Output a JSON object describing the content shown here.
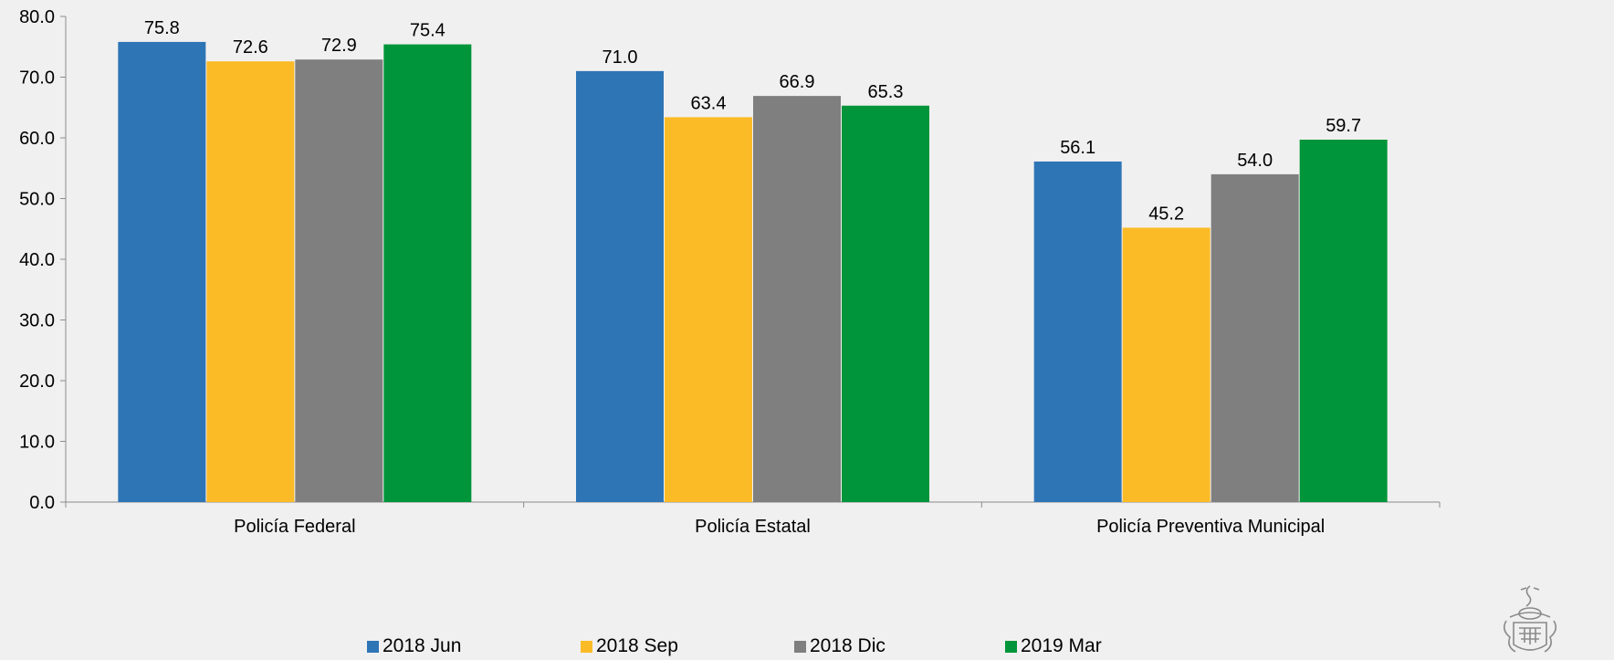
{
  "chart_data": {
    "type": "bar",
    "categories": [
      "Policía Federal",
      "Policía Estatal",
      "Policía Preventiva Municipal"
    ],
    "series": [
      {
        "name": "2018 Jun",
        "color": "#2e75b6",
        "values": [
          75.8,
          71.0,
          56.1
        ],
        "labels": [
          "75.8",
          "71.0",
          "56.1"
        ]
      },
      {
        "name": "2018 Sep",
        "color": "#fbbb27",
        "values": [
          72.6,
          63.4,
          45.2
        ],
        "labels": [
          "72.6",
          "63.4",
          "45.2"
        ]
      },
      {
        "name": "2018 Dic",
        "color": "#7f7f7f",
        "values": [
          72.9,
          66.9,
          54.0
        ],
        "labels": [
          "72.9",
          "66.9",
          "54.0"
        ]
      },
      {
        "name": "2019 Mar",
        "color": "#00953a",
        "values": [
          75.4,
          65.3,
          59.7
        ],
        "labels": [
          "75.4",
          "65.3",
          "59.7"
        ]
      }
    ],
    "ylim": [
      0,
      80
    ],
    "yticks": [
      "0.0",
      "10.0",
      "20.0",
      "30.0",
      "40.0",
      "50.0",
      "60.0",
      "70.0",
      "80.0"
    ],
    "grid": false,
    "legend_position": "bottom"
  },
  "logo": {
    "icon": "seal-icon"
  }
}
